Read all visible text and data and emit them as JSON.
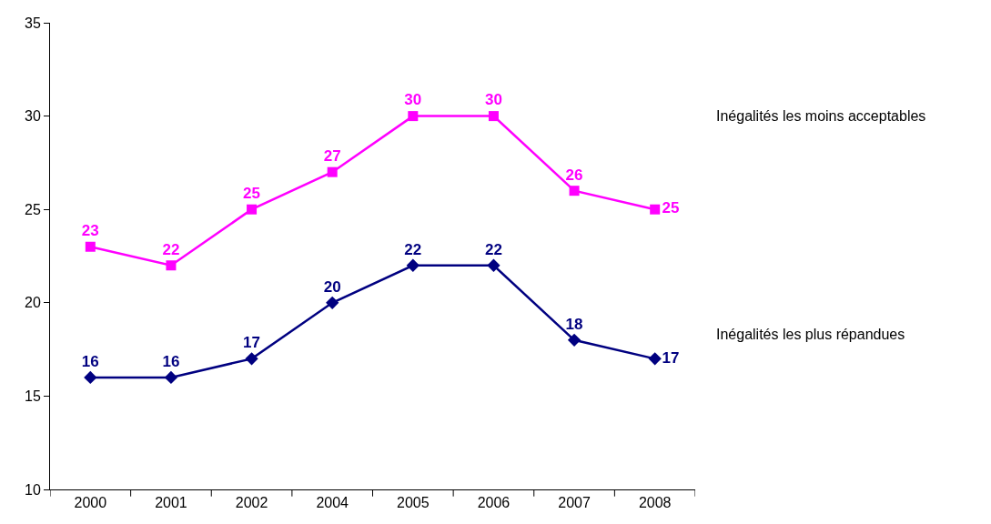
{
  "chart_data": {
    "type": "line",
    "categories": [
      "2000",
      "2001",
      "2002",
      "2004",
      "2005",
      "2006",
      "2007",
      "2008"
    ],
    "series": [
      {
        "name": "Inégalités les moins acceptables",
        "color": "#ff00ff",
        "marker": "square",
        "values": [
          23,
          22,
          25,
          27,
          30,
          30,
          26,
          25
        ]
      },
      {
        "name": "Inégalités les plus répandues",
        "color": "#000080",
        "marker": "diamond",
        "values": [
          16,
          16,
          17,
          20,
          22,
          22,
          18,
          17
        ]
      }
    ],
    "ylim": [
      10,
      35
    ],
    "yticks": [
      10,
      15,
      20,
      25,
      30,
      35
    ],
    "legend": false,
    "data_labels": true,
    "line_style": "solid"
  }
}
